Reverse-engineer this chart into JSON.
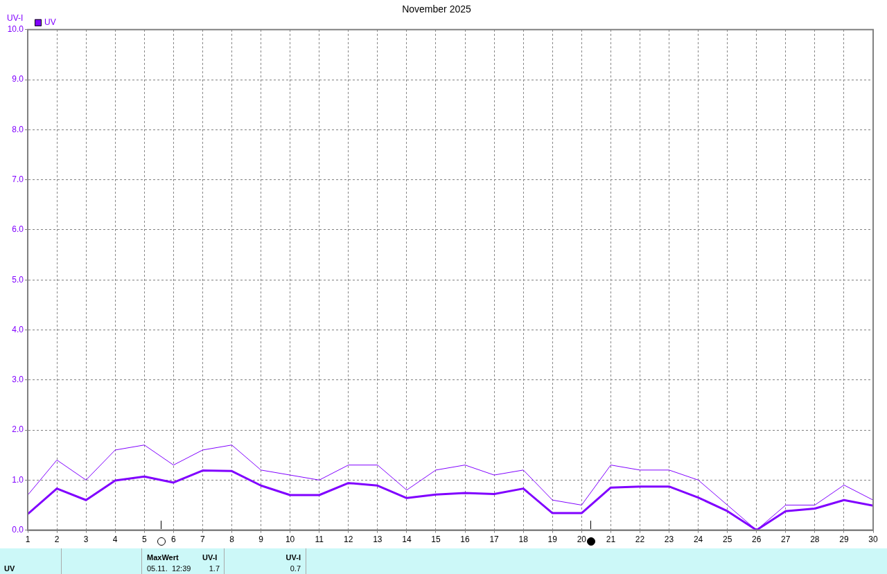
{
  "chart_data": {
    "type": "line",
    "title": "November 2025",
    "ylabel": "UV-I",
    "x": [
      1,
      2,
      3,
      4,
      5,
      6,
      7,
      8,
      9,
      10,
      11,
      12,
      13,
      14,
      15,
      16,
      17,
      18,
      19,
      20,
      21,
      22,
      23,
      24,
      25,
      26,
      27,
      28,
      29,
      30
    ],
    "xlim": [
      1,
      30
    ],
    "xticks": [
      1,
      2,
      3,
      4,
      5,
      6,
      7,
      8,
      9,
      10,
      11,
      12,
      13,
      14,
      15,
      16,
      17,
      18,
      19,
      20,
      21,
      22,
      23,
      24,
      25,
      26,
      27,
      28,
      29,
      30
    ],
    "ylim": [
      0,
      10
    ],
    "yticks": [
      {
        "value": 0,
        "label": "0.0"
      },
      {
        "value": 1,
        "label": "1.0"
      },
      {
        "value": 2,
        "label": "2.0"
      },
      {
        "value": 3,
        "label": "3.0"
      },
      {
        "value": 4,
        "label": "4.0"
      },
      {
        "value": 5,
        "label": "5.0"
      },
      {
        "value": 6,
        "label": "6.0"
      },
      {
        "value": 7,
        "label": "7.0"
      },
      {
        "value": 8,
        "label": "8.0"
      },
      {
        "value": 9,
        "label": "9.0"
      },
      {
        "value": 10,
        "label": "10.0"
      }
    ],
    "series": [
      {
        "name": "UV",
        "color": "#8000ff",
        "values": [
          0.32,
          0.83,
          0.6,
          0.99,
          1.07,
          0.95,
          1.19,
          1.18,
          0.89,
          0.7,
          0.7,
          0.94,
          0.89,
          0.64,
          0.71,
          0.74,
          0.72,
          0.83,
          0.34,
          0.34,
          0.85,
          0.87,
          0.87,
          0.65,
          0.38,
          0,
          0.38,
          0.43,
          0.6,
          0.49
        ]
      },
      {
        "color": "#8000ff",
        "values": [
          0.7,
          1.4,
          1.0,
          1.6,
          1.7,
          1.3,
          1.6,
          1.7,
          1.2,
          1.1,
          1.0,
          1.3,
          1.3,
          0.8,
          1.2,
          1.3,
          1.1,
          1.2,
          0.6,
          0.5,
          1.3,
          1.2,
          1.2,
          1.0,
          0.5,
          0,
          0.5,
          0.5,
          0.9,
          0.6
        ]
      }
    ],
    "grid": true,
    "legend": "top left",
    "marker": "none",
    "annotations": [
      "UV",
      "MaxWert",
      "UV-I",
      "05.11.  12:39",
      "1.7",
      "UV-I",
      "0.7"
    ]
  }
}
